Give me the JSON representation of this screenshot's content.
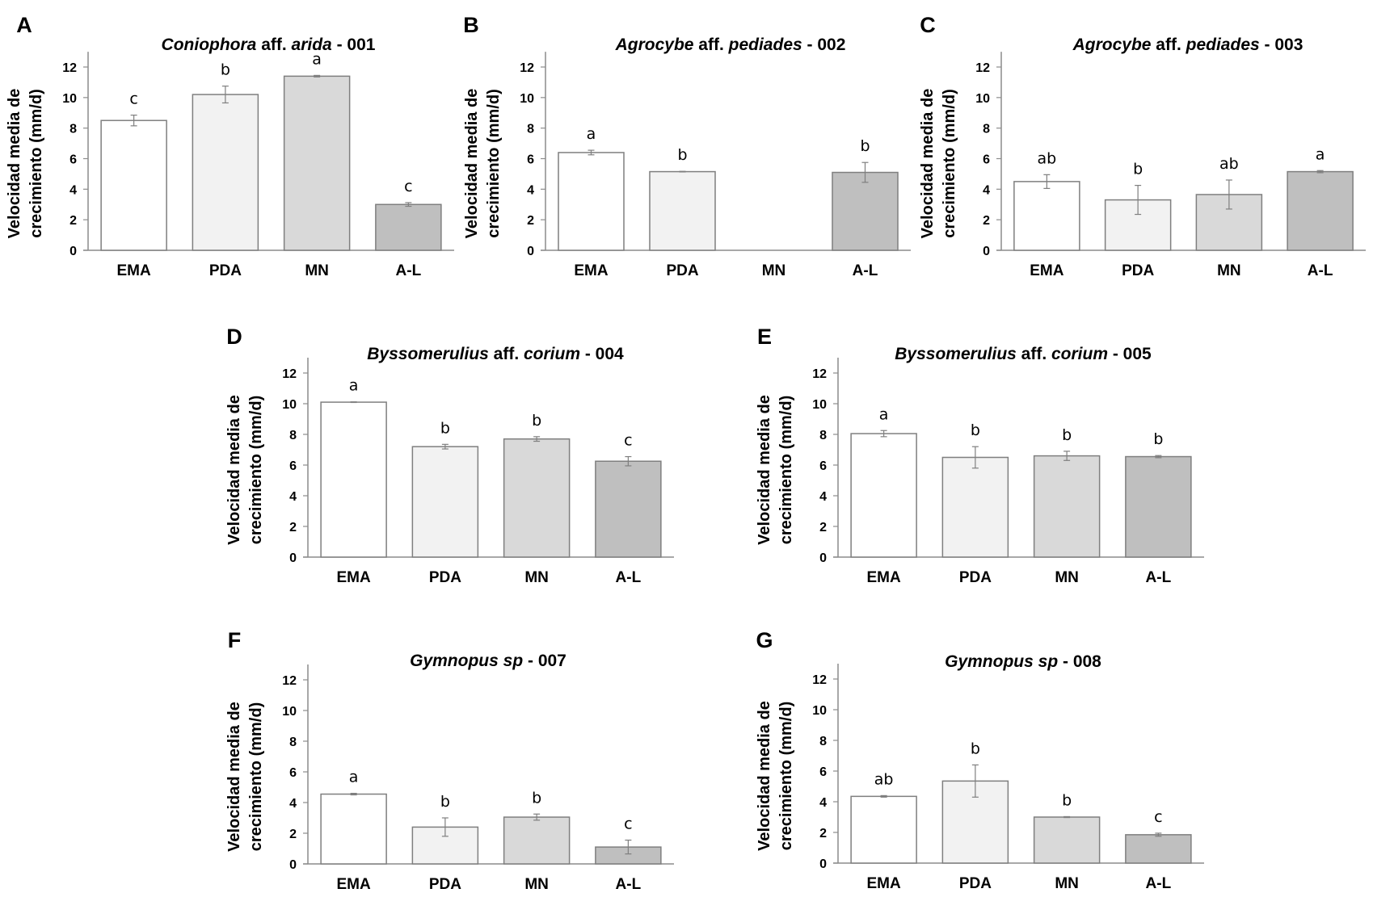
{
  "chart_data": [
    {
      "panel": "A",
      "type": "bar",
      "title": [
        {
          "t": "Coniophora",
          "i": true
        },
        {
          "t": " aff. ",
          "i": false
        },
        {
          "t": "arida",
          "i": true
        },
        {
          "t": " - 001",
          "i": false
        }
      ],
      "ylabel": [
        "Velocidad media de",
        "crecimiento (mm/d)"
      ],
      "categories": [
        "EMA",
        "PDA",
        "MN",
        "A-L"
      ],
      "values": [
        8.5,
        10.2,
        11.4,
        3.0
      ],
      "errors": [
        0.35,
        0.55,
        0.05,
        0.12
      ],
      "letters": [
        "c",
        "b",
        "a",
        "c"
      ],
      "ylim": [
        0,
        12
      ],
      "yticks": [
        0,
        2,
        4,
        6,
        8,
        10,
        12
      ]
    },
    {
      "panel": "B",
      "type": "bar",
      "title": [
        {
          "t": "Agrocybe",
          "i": true
        },
        {
          "t": " aff. ",
          "i": false
        },
        {
          "t": "pediades",
          "i": true
        },
        {
          "t": " - 002",
          "i": false
        }
      ],
      "ylabel": [
        "Velocidad media de",
        "crecimiento (mm/d)"
      ],
      "categories": [
        "EMA",
        "PDA",
        "MN",
        "A-L"
      ],
      "values": [
        6.4,
        5.15,
        null,
        5.1
      ],
      "errors": [
        0.15,
        0.02,
        null,
        0.65
      ],
      "letters": [
        "a",
        "b",
        "",
        "b"
      ],
      "ylim": [
        0,
        12
      ],
      "yticks": [
        0,
        2,
        4,
        6,
        8,
        10,
        12
      ]
    },
    {
      "panel": "C",
      "type": "bar",
      "title": [
        {
          "t": "Agrocybe",
          "i": true
        },
        {
          "t": " aff. ",
          "i": false
        },
        {
          "t": "pediades",
          "i": true
        },
        {
          "t": " - 003",
          "i": false
        }
      ],
      "ylabel": [
        "Velocidad media de",
        "crecimiento (mm/d)"
      ],
      "categories": [
        "EMA",
        "PDA",
        "MN",
        "A-L"
      ],
      "values": [
        4.5,
        3.3,
        3.65,
        5.15
      ],
      "errors": [
        0.45,
        0.95,
        0.95,
        0.07
      ],
      "letters": [
        "ab",
        "b",
        "ab",
        "a"
      ],
      "ylim": [
        0,
        12
      ],
      "yticks": [
        0,
        2,
        4,
        6,
        8,
        10,
        12
      ]
    },
    {
      "panel": "D",
      "type": "bar",
      "title": [
        {
          "t": "Byssomerulius",
          "i": true
        },
        {
          "t": " aff. ",
          "i": false
        },
        {
          "t": "corium",
          "i": true
        },
        {
          "t": " - 004",
          "i": false
        }
      ],
      "ylabel": [
        "Velocidad media de",
        "crecimiento (mm/d)"
      ],
      "categories": [
        "EMA",
        "PDA",
        "MN",
        "A-L"
      ],
      "values": [
        10.1,
        7.2,
        7.7,
        6.25
      ],
      "errors": [
        0.02,
        0.15,
        0.15,
        0.3
      ],
      "letters": [
        "a",
        "b",
        "b",
        "c"
      ],
      "ylim": [
        0,
        12
      ],
      "yticks": [
        0,
        2,
        4,
        6,
        8,
        10,
        12
      ]
    },
    {
      "panel": "E",
      "type": "bar",
      "title": [
        {
          "t": "Byssomerulius",
          "i": true
        },
        {
          "t": " aff. ",
          "i": false
        },
        {
          "t": "corium",
          "i": true
        },
        {
          "t": " - 005",
          "i": false
        }
      ],
      "ylabel": [
        "Velocidad media de",
        "crecimiento (mm/d)"
      ],
      "categories": [
        "EMA",
        "PDA",
        "MN",
        "A-L"
      ],
      "values": [
        8.05,
        6.5,
        6.6,
        6.55
      ],
      "errors": [
        0.2,
        0.7,
        0.3,
        0.07
      ],
      "letters": [
        "a",
        "b",
        "b",
        "b"
      ],
      "ylim": [
        0,
        12
      ],
      "yticks": [
        0,
        2,
        4,
        6,
        8,
        10,
        12
      ]
    },
    {
      "panel": "F",
      "type": "bar",
      "title": [
        {
          "t": "Gymnopus sp",
          "i": true
        },
        {
          "t": " - 007",
          "i": false
        }
      ],
      "ylabel": [
        "Velocidad media de",
        "crecimiento (mm/d)"
      ],
      "categories": [
        "EMA",
        "PDA",
        "MN",
        "A-L"
      ],
      "values": [
        4.55,
        2.4,
        3.05,
        1.1
      ],
      "errors": [
        0.05,
        0.6,
        0.2,
        0.45
      ],
      "letters": [
        "a",
        "b",
        "b",
        "c"
      ],
      "ylim": [
        0,
        12
      ],
      "yticks": [
        0,
        2,
        4,
        6,
        8,
        10,
        12
      ]
    },
    {
      "panel": "G",
      "type": "bar",
      "title": [
        {
          "t": "Gymnopus sp",
          "i": true
        },
        {
          "t": " - 008",
          "i": false
        }
      ],
      "ylabel": [
        "Velocidad media de",
        "crecimiento (mm/d)"
      ],
      "categories": [
        "EMA",
        "PDA",
        "MN",
        "A-L"
      ],
      "values": [
        4.35,
        5.35,
        3.0,
        1.85
      ],
      "errors": [
        0.05,
        1.05,
        0.03,
        0.1
      ],
      "letters": [
        "ab",
        "b",
        "b",
        "c"
      ],
      "ylim": [
        0,
        12
      ],
      "yticks": [
        0,
        2,
        4,
        6,
        8,
        10,
        12
      ]
    }
  ],
  "colors": {
    "EMA": "#ffffff",
    "PDA": "#f2f2f2",
    "MN": "#d9d9d9",
    "A-L": "#bfbfbf",
    "bar_border": "#7f7f7f",
    "axis": "#8c8c8c",
    "error": "#7f7f7f"
  }
}
